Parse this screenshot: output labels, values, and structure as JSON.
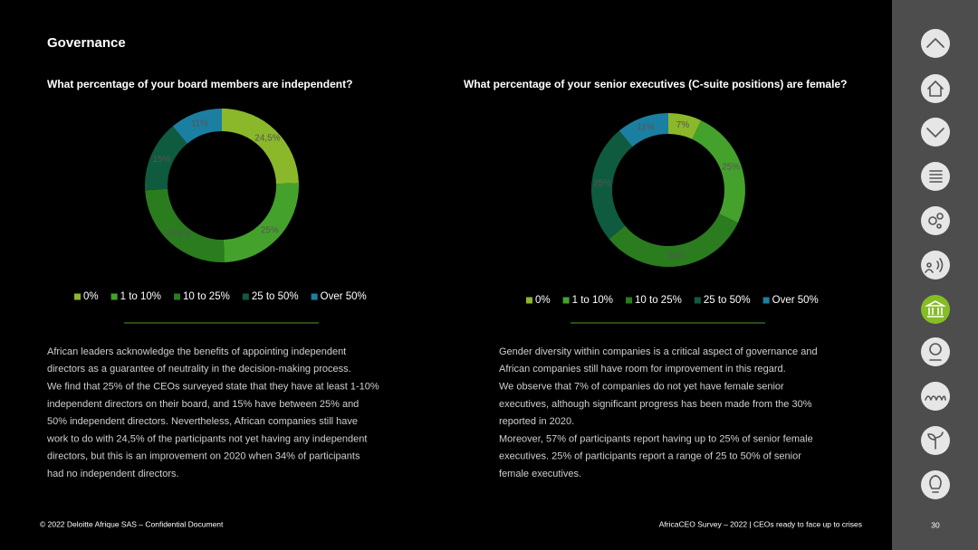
{
  "header": {
    "title": "Governance"
  },
  "chart_data": [
    {
      "type": "pie",
      "title": "What percentage of your board members are independent?",
      "categories": [
        "0%",
        "1 to 10%",
        "10 to 25%",
        "25 to 50%",
        "Over 50%"
      ],
      "values": [
        24.5,
        25,
        24.5,
        15,
        11
      ],
      "value_labels": [
        "24,5%",
        "25%",
        "24,5%",
        "15%",
        "11%"
      ],
      "colors": [
        "#8ab82a",
        "#44a12c",
        "#2a7c1f",
        "#0f5b40",
        "#1b7fa1"
      ]
    },
    {
      "type": "pie",
      "title": "What percentage of your senior executives (C-suite positions) are female?",
      "categories": [
        "0%",
        "1 to 10%",
        "10 to 25%",
        "25 to 50%",
        "Over 50%"
      ],
      "values": [
        7,
        25,
        32,
        25,
        11
      ],
      "value_labels": [
        "7%",
        "25%",
        "32%",
        "25%",
        "11%"
      ],
      "colors": [
        "#8ab82a",
        "#44a12c",
        "#2a7c1f",
        "#0f5b40",
        "#1b7fa1"
      ]
    }
  ],
  "paragraphs": [
    [
      "African leaders acknowledge the benefits of appointing independent",
      "directors as a guarantee of neutrality in the decision-making process.",
      "We find that 25% of the CEOs surveyed state that they have at least 1-10%",
      "independent directors on their board, and 15% have between 25% and",
      "50% independent directors. Nevertheless, African companies still have",
      "work to do with 24,5% of the participants not yet having any independent",
      "directors, but this is an improvement on 2020 when 34% of participants",
      "had no independent directors."
    ],
    [
      "Gender diversity within companies is a critical aspect of governance and",
      "African companies still have room for improvement in this regard.",
      "We observe that 7% of companies do not yet have female senior",
      "executives, although significant progress has been made from the 30%",
      "reported in 2020.",
      "Moreover, 57% of participants report having up to 25% of senior female",
      "executives. 25% of participants report a range of 25 to 50% of senior",
      "female executives."
    ]
  ],
  "footer": {
    "left": "© 2022 Deloitte Afrique SAS – Confidential Document",
    "right": "AfricaCEO Survey – 2022 | CEOs ready to face up to crises",
    "page": "30"
  }
}
